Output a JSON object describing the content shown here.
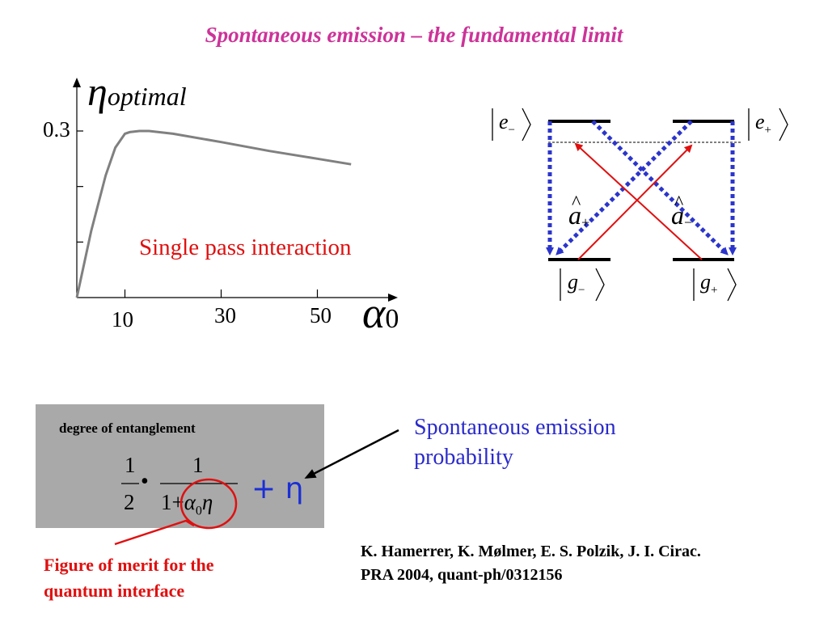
{
  "title": "Spontaneous emission – the fundamental limit",
  "plot": {
    "y_axis_label": "η",
    "y_axis_label_sub": "optimal",
    "x_axis_label": "α",
    "x_axis_label_sub": "0",
    "y_tick_label": "0.3",
    "x_tick_labels": [
      "10",
      "30",
      "50"
    ],
    "annotation": "Single pass interaction",
    "curve_color": "#808080",
    "annotation_color": "#e01010"
  },
  "chart_data": {
    "type": "line",
    "title": "",
    "xlabel": "α0",
    "ylabel": "η optimal",
    "x": [
      0,
      3,
      6,
      8,
      10,
      11,
      13,
      15,
      20,
      30,
      40,
      50,
      57
    ],
    "series": [
      {
        "values": [
          0,
          0.12,
          0.22,
          0.27,
          0.295,
          0.298,
          0.3,
          0.3,
          0.295,
          0.28,
          0.264,
          0.25,
          0.24
        ]
      }
    ],
    "ylim": [
      0,
      0.35
    ],
    "xlim": [
      0,
      65
    ],
    "grid": false
  },
  "level_diagram": {
    "excited_minus": "e",
    "excited_minus_sub": "−",
    "excited_plus": "e",
    "excited_plus_sub": "+",
    "ground_minus": "g",
    "ground_minus_sub": "−",
    "ground_plus": "g",
    "ground_plus_sub": "+",
    "op_plus": "a",
    "op_plus_sub": "+",
    "op_minus": "a",
    "op_minus_sub": "−",
    "decay_color": "#2b35cc",
    "drive_color": "#e01010"
  },
  "formula": {
    "box_label": "degree of entanglement",
    "half_num": "1",
    "half_den": "2",
    "dot": "•",
    "frac_num": "1",
    "frac_den_one": "1",
    "frac_den_plus": "+",
    "frac_den_alpha": "α",
    "frac_den_alpha_sub": "0",
    "frac_den_eta": "η",
    "plus_eta": "+ η",
    "box_color": "#a9a9a9"
  },
  "spontaneous_label": "Spontaneous emission probability",
  "merit_label": "Figure of merit for the quantum interface",
  "citation": {
    "line1": "K. Hamerrer, K. Mølmer, E. S. Polzik, J. I. Cirac.",
    "line2": "PRA 2004, quant-ph/0312156"
  }
}
